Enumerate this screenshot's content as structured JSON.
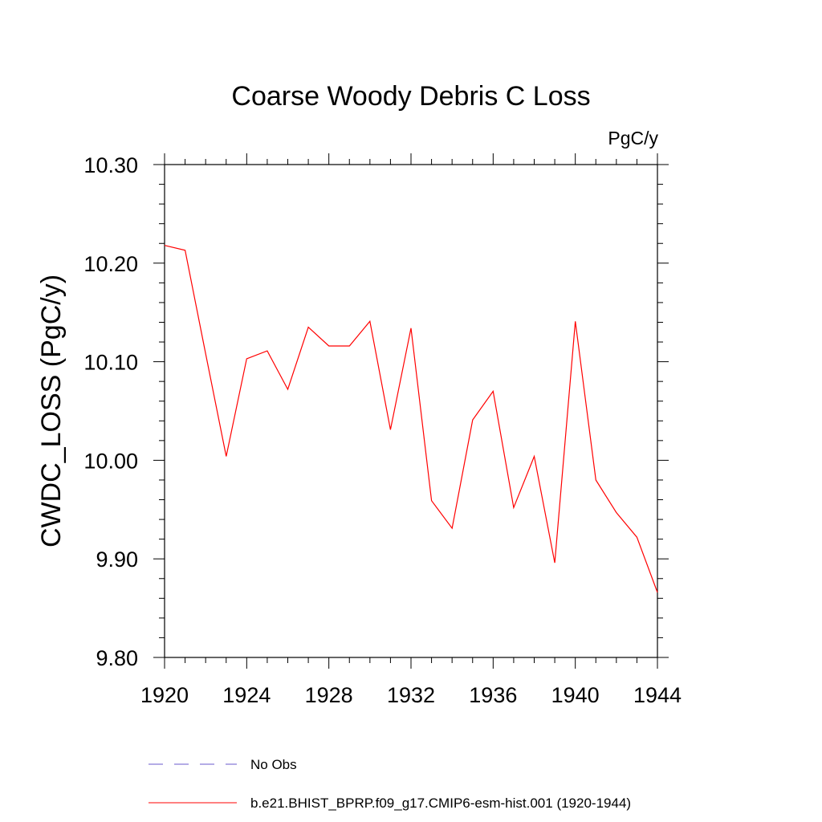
{
  "chart_data": {
    "type": "line",
    "title": "Coarse Woody Debris C Loss",
    "units": "PgC/y",
    "xlabel": "",
    "ylabel": "CWDC_LOSS  (PgC/y)",
    "xlim": [
      1920,
      1944
    ],
    "ylim": [
      9.8,
      10.3
    ],
    "x_ticks": [
      1920,
      1924,
      1928,
      1932,
      1936,
      1940,
      1944
    ],
    "y_ticks": [
      9.8,
      9.9,
      10.0,
      10.1,
      10.2,
      10.3
    ],
    "x_tick_labels": [
      "1920",
      "1924",
      "1928",
      "1932",
      "1936",
      "1940",
      "1944"
    ],
    "y_tick_labels": [
      "9.80",
      "9.90",
      "10.00",
      "10.10",
      "10.20",
      "10.30"
    ],
    "grid": false,
    "legend_position": "bottom",
    "series": [
      {
        "name": "b.e21.BHIST_BPRP.f09_g17.CMIP6-esm-hist.001 (1920-1944)",
        "color": "#ff0000",
        "style": "solid",
        "x": [
          1920,
          1921,
          1922,
          1923,
          1924,
          1925,
          1926,
          1927,
          1928,
          1929,
          1930,
          1931,
          1932,
          1933,
          1934,
          1935,
          1936,
          1937,
          1938,
          1939,
          1940,
          1941,
          1942,
          1943,
          1944
        ],
        "y": [
          10.218,
          10.213,
          10.108,
          10.004,
          10.103,
          10.111,
          10.072,
          10.135,
          10.116,
          10.116,
          10.141,
          10.031,
          10.134,
          9.959,
          9.931,
          10.041,
          10.07,
          9.952,
          10.004,
          9.896,
          10.141,
          9.98,
          9.947,
          9.922,
          9.866
        ]
      }
    ],
    "legend": [
      {
        "label": "No Obs",
        "color": "#6a5acd",
        "style": "dashed"
      },
      {
        "label": "b.e21.BHIST_BPRP.f09_g17.CMIP6-esm-hist.001 (1920-1944)",
        "color": "#ff0000",
        "style": "solid"
      }
    ]
  }
}
